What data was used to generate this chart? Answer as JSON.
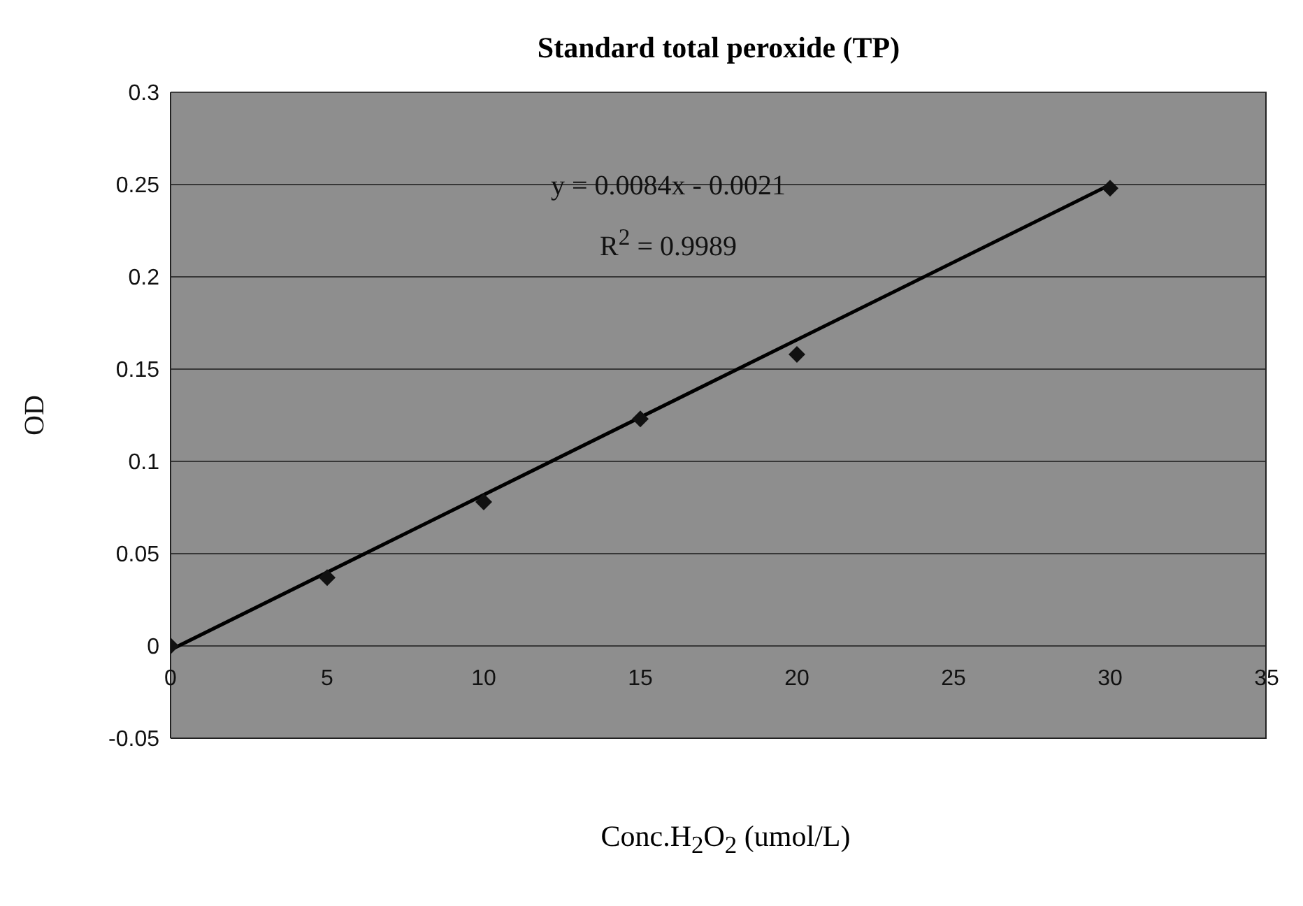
{
  "chart_data": {
    "type": "scatter",
    "title": "Standard total peroxide (TP)",
    "xlabel": "Conc.H$_{2}$O$_{2}$ (umol/L)",
    "ylabel": "OD",
    "series": [
      {
        "color": "#111111",
        "marker": "diamond",
        "x": [
          0,
          5,
          10,
          15,
          20,
          30
        ],
        "values": [
          0,
          0.037,
          0.078,
          0.123,
          0.158,
          0.248
        ]
      },
      {
        "type": "line",
        "color": "#000000",
        "marker": "none",
        "line_style": "solid",
        "x": [
          0,
          30
        ],
        "values": [
          -0.0021,
          0.2499
        ]
      }
    ],
    "annotations": [
      "y = 0.0084x - 0.0021",
      "R$^{2}$ = 0.9989"
    ],
    "xlim": [
      0,
      35
    ],
    "xticks": [
      0,
      5,
      10,
      15,
      20,
      25,
      30,
      35
    ],
    "ylim": [
      -0.05,
      0.3
    ],
    "yticks": [
      -0.05,
      0,
      0.05,
      0.1,
      0.15,
      0.2,
      0.25,
      0.3
    ],
    "grid": "y",
    "legend": false
  }
}
